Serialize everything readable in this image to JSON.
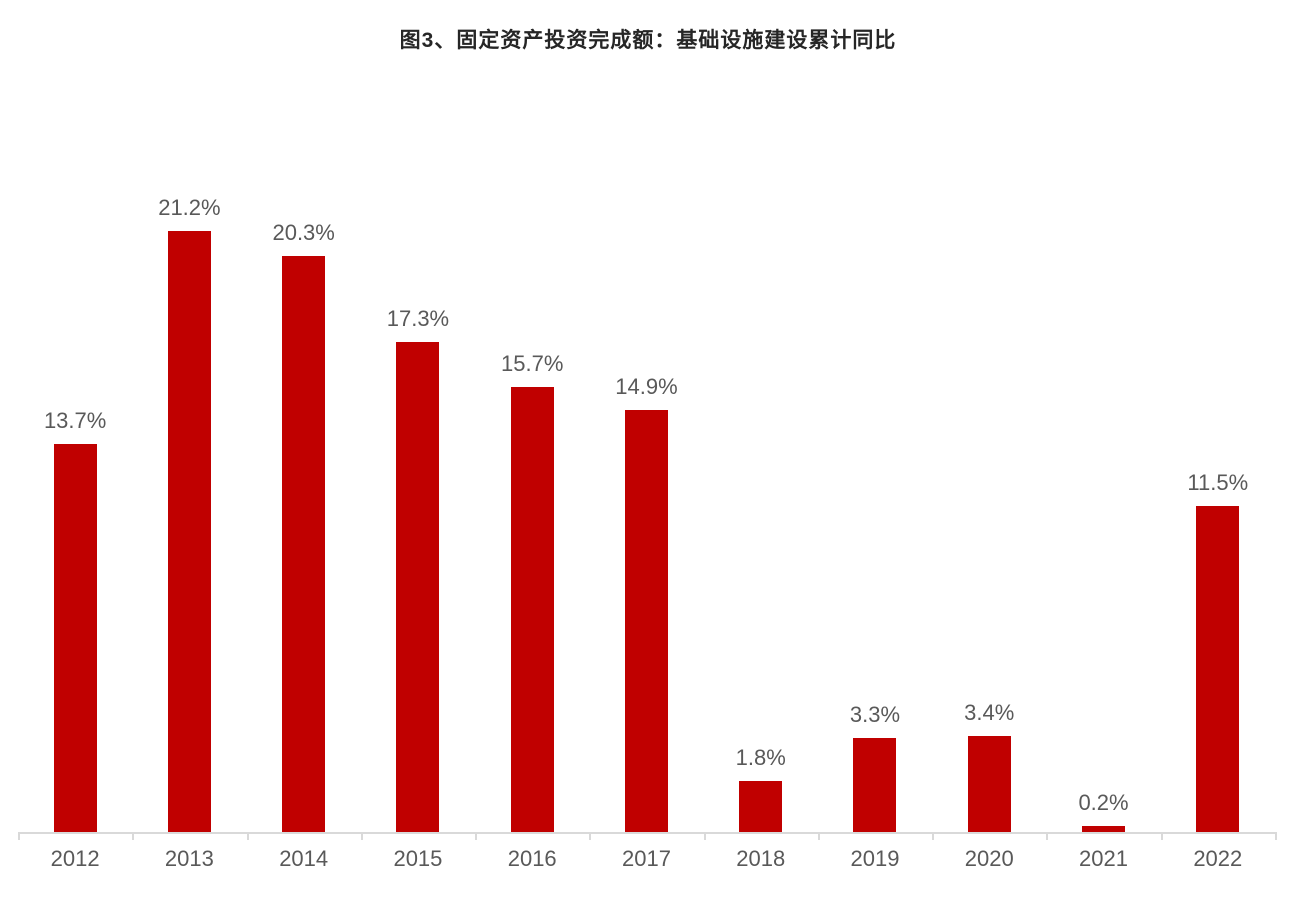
{
  "title": "图3、固定资产投资完成额：基础设施建设累计同比",
  "colors": {
    "bar": "#C00000",
    "data_label": "#595959",
    "axis_line": "#D9D9D9",
    "tick_label": "#595959",
    "title": "#262626",
    "background": "#FFFFFF"
  },
  "chart_data": {
    "type": "bar",
    "title": "图3、固定资产投资完成额：基础设施建设累计同比",
    "categories": [
      "2012",
      "2013",
      "2014",
      "2015",
      "2016",
      "2017",
      "2018",
      "2019",
      "2020",
      "2021",
      "2022"
    ],
    "values": [
      13.7,
      21.2,
      20.3,
      17.3,
      15.7,
      14.9,
      1.8,
      3.3,
      3.4,
      0.2,
      11.5
    ],
    "value_labels": [
      "13.7%",
      "21.2%",
      "20.3%",
      "17.3%",
      "15.7%",
      "14.9%",
      "1.8%",
      "3.3%",
      "3.4%",
      "0.2%",
      "11.5%"
    ],
    "xlabel": "",
    "ylabel": "",
    "ylim": [
      0,
      25
    ],
    "value_suffix": "%",
    "grid": false,
    "legend": "none",
    "y_axis_visible": false,
    "series_color": "#C00000"
  }
}
